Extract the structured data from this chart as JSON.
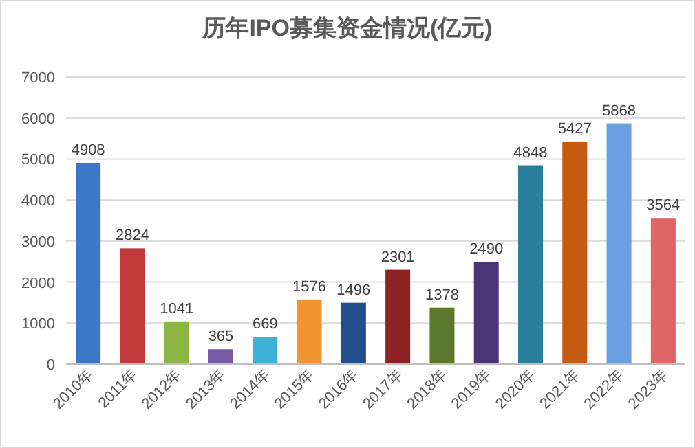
{
  "chart_data": {
    "type": "bar",
    "title": "历年IPO募集资金情况(亿元)",
    "categories": [
      "2010年",
      "2011年",
      "2012年",
      "2013年",
      "2014年",
      "2015年",
      "2016年",
      "2017年",
      "2018年",
      "2019年",
      "2020年",
      "2021年",
      "2022年",
      "2023年"
    ],
    "values": [
      4908,
      2824,
      1041,
      365,
      669,
      1576,
      1496,
      2301,
      1378,
      2490,
      4848,
      5427,
      5868,
      3564
    ],
    "colors": [
      "#3b78c8",
      "#c2393b",
      "#8db543",
      "#7a5ba8",
      "#3fb0d6",
      "#f09433",
      "#1f4e8c",
      "#8b2325",
      "#5a7a2a",
      "#4b3579",
      "#2a7f9b",
      "#c55a11",
      "#6a9ee0",
      "#e06666"
    ],
    "ylim": [
      0,
      7000
    ],
    "yticks": [
      0,
      1000,
      2000,
      3000,
      4000,
      5000,
      6000,
      7000
    ],
    "grid": "y",
    "data_labels": true
  }
}
